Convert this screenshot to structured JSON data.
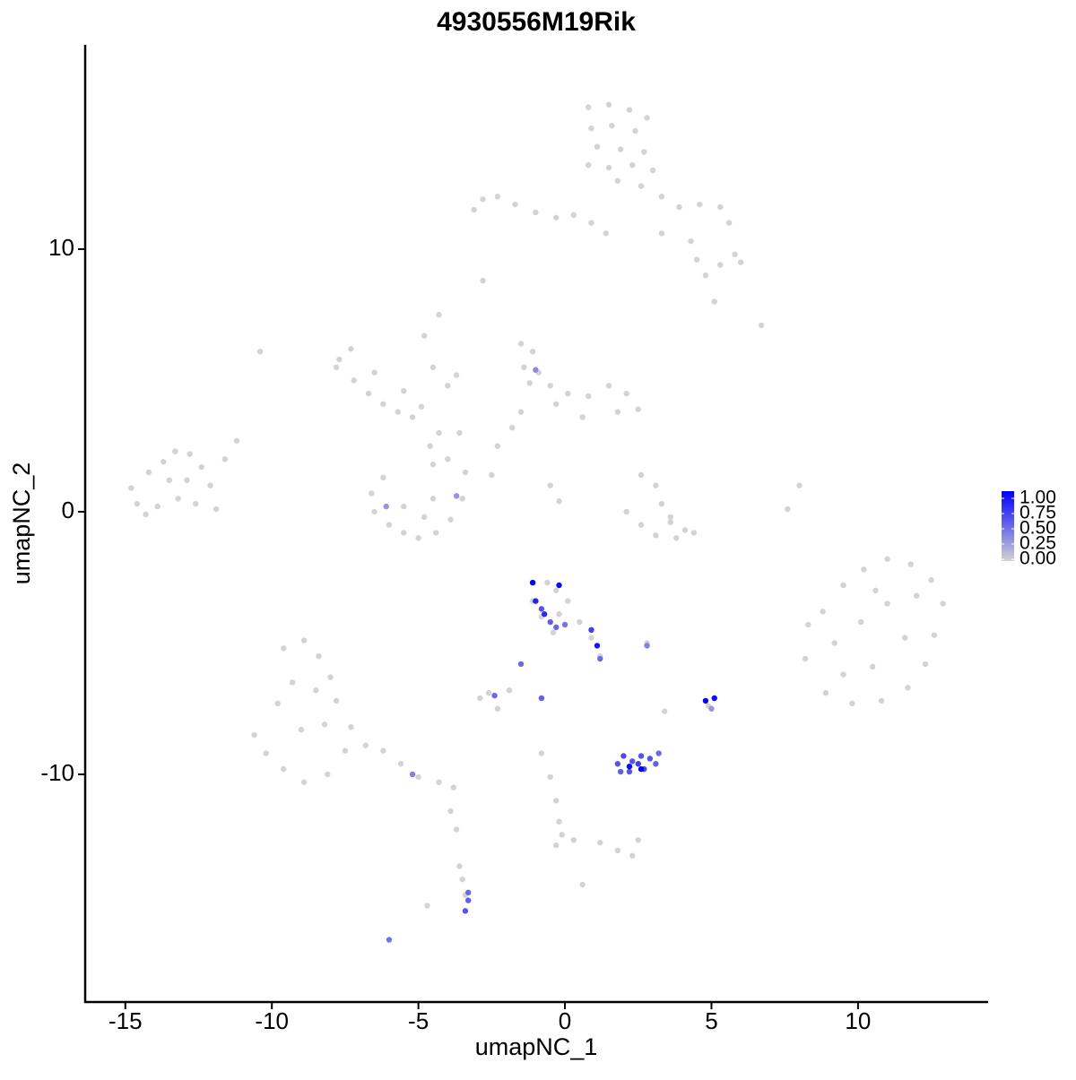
{
  "chart_data": {
    "type": "scatter",
    "title": "4930556M19Rik",
    "x_label": "umapNC_1",
    "y_label": "umapNC_2",
    "xlim": [
      -16.37,
      14.44
    ],
    "ylim": [
      -18.67,
      17.78
    ],
    "xticks": [
      -15,
      -10,
      -5,
      0,
      5,
      10
    ],
    "yticks": [
      -10,
      0,
      10
    ],
    "low_color": "#d3d3d3",
    "high_color": "#0000ff",
    "colorlim": [
      0,
      1
    ],
    "colorticks": [
      {
        "value": 0,
        "label": "0.00"
      },
      {
        "value": 0.25,
        "label": "0.25"
      },
      {
        "value": 0.5,
        "label": "0.50"
      },
      {
        "value": 0.75,
        "label": "0.75"
      },
      {
        "value": 1,
        "label": "1.00"
      }
    ],
    "x": [
      0.8,
      1.5,
      2.2,
      2.8,
      0.9,
      1.6,
      2.4,
      1.1,
      1.9,
      2.7,
      0.8,
      1.5,
      2.3,
      3.0,
      1.8,
      2.6,
      3.3,
      3.9,
      4.6,
      5.3,
      5.6,
      -3.1,
      -2.8,
      -2.3,
      -1.7,
      -1.0,
      -0.3,
      0.3,
      0.9,
      1.4,
      3.3,
      4.3,
      4.5,
      4.8,
      5.3,
      5.8,
      6.0,
      5.1,
      6.7,
      -2.8,
      -10.4,
      -7.7,
      -7.3,
      -7.8,
      -7.2,
      -6.7,
      -6.2,
      -5.7,
      -5.2,
      -4.9,
      -5.5,
      -6.5,
      -4.8,
      -4.5,
      -4.0,
      -3.7,
      -4.3,
      -3.6,
      -4.6,
      -4.5,
      -1.5,
      -1.1,
      -1.4,
      -0.9,
      -1.2,
      -0.5,
      0.1,
      0.8,
      1.5,
      2.1,
      2.5,
      1.8,
      0.6,
      -0.3,
      -1.5,
      -1.8,
      -2.3,
      -2.5,
      -0.5,
      -0.2,
      -14.8,
      -14.6,
      -14.2,
      -13.7,
      -13.3,
      -12.8,
      -12.4,
      -12.1,
      -11.9,
      -12.6,
      -13.2,
      -13.9,
      -14.3,
      -13.5,
      -12.9,
      -11.6,
      -11.2,
      -6.2,
      -6.6,
      -6.5,
      -6.0,
      -5.5,
      -5.0,
      -4.4,
      -3.9,
      -3.5,
      -3.4,
      -5.5,
      -4.8,
      -4.5,
      -4.0,
      -4.3,
      2.6,
      3.1,
      3.3,
      3.6,
      4.1,
      4.4,
      3.8,
      3.1,
      2.6,
      2.1,
      3.6,
      7.6,
      8.0,
      8.3,
      8.8,
      9.5,
      10.2,
      11.0,
      11.8,
      12.5,
      12.9,
      12.6,
      12.3,
      11.7,
      10.8,
      9.8,
      8.9,
      8.2,
      9.2,
      10.1,
      11.0,
      11.6,
      10.5,
      9.5,
      10.6,
      12.0,
      -9.6,
      -8.9,
      -8.4,
      -8.0,
      -7.8,
      -8.5,
      -9.3,
      -9.8,
      -10.6,
      -10.2,
      -9.6,
      -8.9,
      -8.1,
      -7.5,
      -6.8,
      -6.2,
      -5.6,
      -5.0,
      -4.3,
      -3.8,
      -9.0,
      -8.2,
      -7.3,
      -1.1,
      -0.6,
      -0.3,
      0.1,
      -0.2,
      -0.8,
      -1.1,
      0.5,
      0.9,
      1.2,
      -0.4,
      2.8,
      -2.6,
      -2.9,
      -2.3,
      -1.9,
      -0.8,
      -0.5,
      -0.3,
      -0.2,
      -0.1,
      -0.3,
      0.3,
      1.2,
      1.8,
      2.3,
      2.5,
      3.4,
      0.6,
      -3.6,
      -3.5,
      -3.4,
      -4.7,
      -3.7,
      -3.9,
      4.9,
      -1.0,
      -6.1,
      -3.7,
      -5.2,
      -1.1,
      -0.2,
      -1.0,
      -0.7,
      -0.5,
      -0.8,
      -0.3,
      0.0,
      0.9,
      1.1,
      1.2,
      -1.5,
      -2.4,
      -0.8,
      2.8,
      1.8,
      2.0,
      2.3,
      2.6,
      2.9,
      3.1,
      2.7,
      2.2,
      1.9,
      2.2,
      2.6,
      2.5,
      3.2,
      -3.3,
      -3.3,
      -3.4,
      -6.0,
      4.8,
      5.1,
      5.0
    ],
    "y": [
      15.4,
      15.5,
      15.3,
      15.0,
      14.6,
      14.7,
      14.5,
      13.9,
      13.8,
      13.7,
      13.2,
      13.1,
      13.2,
      13.0,
      12.6,
      12.4,
      12.0,
      11.6,
      11.7,
      11.6,
      11.0,
      11.5,
      11.9,
      12.0,
      11.7,
      11.4,
      11.2,
      11.3,
      11.0,
      10.6,
      10.6,
      10.3,
      9.6,
      9.0,
      9.4,
      9.8,
      9.5,
      8.0,
      7.1,
      8.8,
      6.1,
      5.8,
      6.2,
      5.5,
      5.0,
      4.5,
      4.1,
      3.8,
      3.6,
      4.0,
      4.6,
      5.3,
      6.7,
      5.5,
      4.8,
      5.2,
      7.5,
      3.0,
      2.5,
      1.8,
      6.4,
      6.1,
      5.5,
      5.3,
      4.9,
      4.8,
      4.5,
      4.4,
      4.8,
      4.5,
      3.9,
      3.8,
      3.6,
      4.1,
      3.8,
      3.2,
      2.5,
      1.4,
      1.0,
      0.4,
      0.9,
      0.3,
      1.5,
      1.9,
      2.3,
      2.2,
      1.7,
      1.0,
      0.1,
      0.3,
      0.5,
      0.2,
      -0.1,
      1.2,
      1.2,
      2.0,
      2.7,
      1.3,
      0.7,
      0.0,
      -0.5,
      -0.8,
      -1.0,
      -0.8,
      -0.3,
      0.5,
      1.5,
      0.2,
      -0.2,
      0.5,
      2.0,
      3.0,
      1.4,
      1.0,
      0.3,
      -0.4,
      -0.7,
      -0.8,
      -1.0,
      -0.9,
      -0.5,
      0.0,
      -0.2,
      0.1,
      1.0,
      -4.3,
      -3.8,
      -2.8,
      -2.2,
      -1.8,
      -2.0,
      -2.6,
      -3.5,
      -4.7,
      -5.8,
      -6.7,
      -7.2,
      -7.3,
      -6.9,
      -5.6,
      -5.0,
      -4.2,
      -3.5,
      -4.8,
      -5.9,
      -6.2,
      -3.0,
      -3.2,
      -5.2,
      -4.9,
      -5.5,
      -6.3,
      -7.2,
      -6.8,
      -6.5,
      -7.3,
      -8.5,
      -9.2,
      -9.8,
      -10.3,
      -10.0,
      -9.1,
      -8.9,
      -9.1,
      -9.6,
      -10.1,
      -10.3,
      -10.5,
      -8.3,
      -8.1,
      -8.2,
      -2.7,
      -2.7,
      -3.0,
      -3.4,
      -3.9,
      -4.0,
      -3.4,
      -4.2,
      -4.8,
      -5.5,
      -4.6,
      -5.0,
      -6.9,
      -7.1,
      -7.5,
      -6.8,
      -9.2,
      -10.1,
      -11.0,
      -11.8,
      -12.3,
      -12.7,
      -12.5,
      -12.6,
      -12.9,
      -13.1,
      -12.5,
      -7.6,
      -14.2,
      -13.5,
      -14.0,
      -14.6,
      -15.0,
      -12.1,
      -11.4,
      -7.4,
      5.4,
      0.2,
      0.6,
      -10.0,
      -2.7,
      -2.8,
      -3.4,
      -3.9,
      -4.2,
      -3.7,
      -4.4,
      -4.3,
      -4.5,
      -5.1,
      -5.6,
      -5.8,
      -7.0,
      -7.1,
      -5.1,
      -9.6,
      -9.3,
      -9.5,
      -9.3,
      -9.4,
      -9.6,
      -9.8,
      -9.9,
      -9.9,
      -9.7,
      -9.8,
      -9.6,
      -9.2,
      -14.5,
      -14.8,
      -15.2,
      -16.3,
      -7.2,
      -7.1,
      -7.5
    ],
    "values": [
      0,
      0,
      0,
      0,
      0,
      0,
      0,
      0,
      0,
      0,
      0,
      0,
      0,
      0,
      0,
      0,
      0,
      0,
      0,
      0,
      0,
      0,
      0,
      0,
      0,
      0,
      0,
      0,
      0,
      0,
      0,
      0,
      0,
      0,
      0,
      0,
      0,
      0,
      0,
      0,
      0,
      0,
      0,
      0,
      0,
      0,
      0,
      0,
      0,
      0,
      0,
      0,
      0,
      0,
      0,
      0,
      0,
      0,
      0,
      0,
      0,
      0,
      0,
      0,
      0,
      0,
      0,
      0,
      0,
      0,
      0,
      0,
      0,
      0,
      0,
      0,
      0,
      0,
      0,
      0,
      0,
      0,
      0,
      0,
      0,
      0,
      0,
      0,
      0,
      0,
      0,
      0,
      0,
      0,
      0,
      0,
      0,
      0,
      0,
      0,
      0,
      0,
      0,
      0,
      0,
      0,
      0,
      0,
      0,
      0,
      0,
      0,
      0,
      0,
      0,
      0,
      0,
      0,
      0,
      0,
      0,
      0,
      0,
      0,
      0,
      0,
      0,
      0,
      0,
      0,
      0,
      0,
      0,
      0,
      0,
      0,
      0,
      0,
      0,
      0,
      0,
      0,
      0,
      0,
      0,
      0,
      0,
      0,
      0,
      0,
      0,
      0,
      0,
      0,
      0,
      0,
      0,
      0,
      0,
      0,
      0,
      0,
      0,
      0,
      0,
      0,
      0,
      0,
      0,
      0,
      0,
      0,
      0,
      0,
      0,
      0,
      0,
      0,
      0,
      0,
      0,
      0,
      0,
      0,
      0,
      0,
      0,
      0,
      0,
      0,
      0,
      0,
      0,
      0,
      0,
      0,
      0,
      0,
      0,
      0,
      0,
      0,
      0,
      0,
      0,
      0,
      0,
      0.35,
      0.3,
      0.3,
      0.4,
      1.0,
      0.95,
      0.85,
      0.8,
      0.55,
      0.6,
      0.5,
      0.45,
      0.7,
      0.9,
      0.5,
      0.5,
      0.5,
      0.55,
      0.4,
      0.6,
      0.65,
      0.6,
      0.6,
      0.6,
      0.55,
      0.65,
      0.6,
      0.55,
      0.95,
      1.0,
      0.7,
      0.5,
      0.5,
      0.55,
      0.6,
      0.45,
      1.0,
      0.95,
      0.3
    ]
  }
}
